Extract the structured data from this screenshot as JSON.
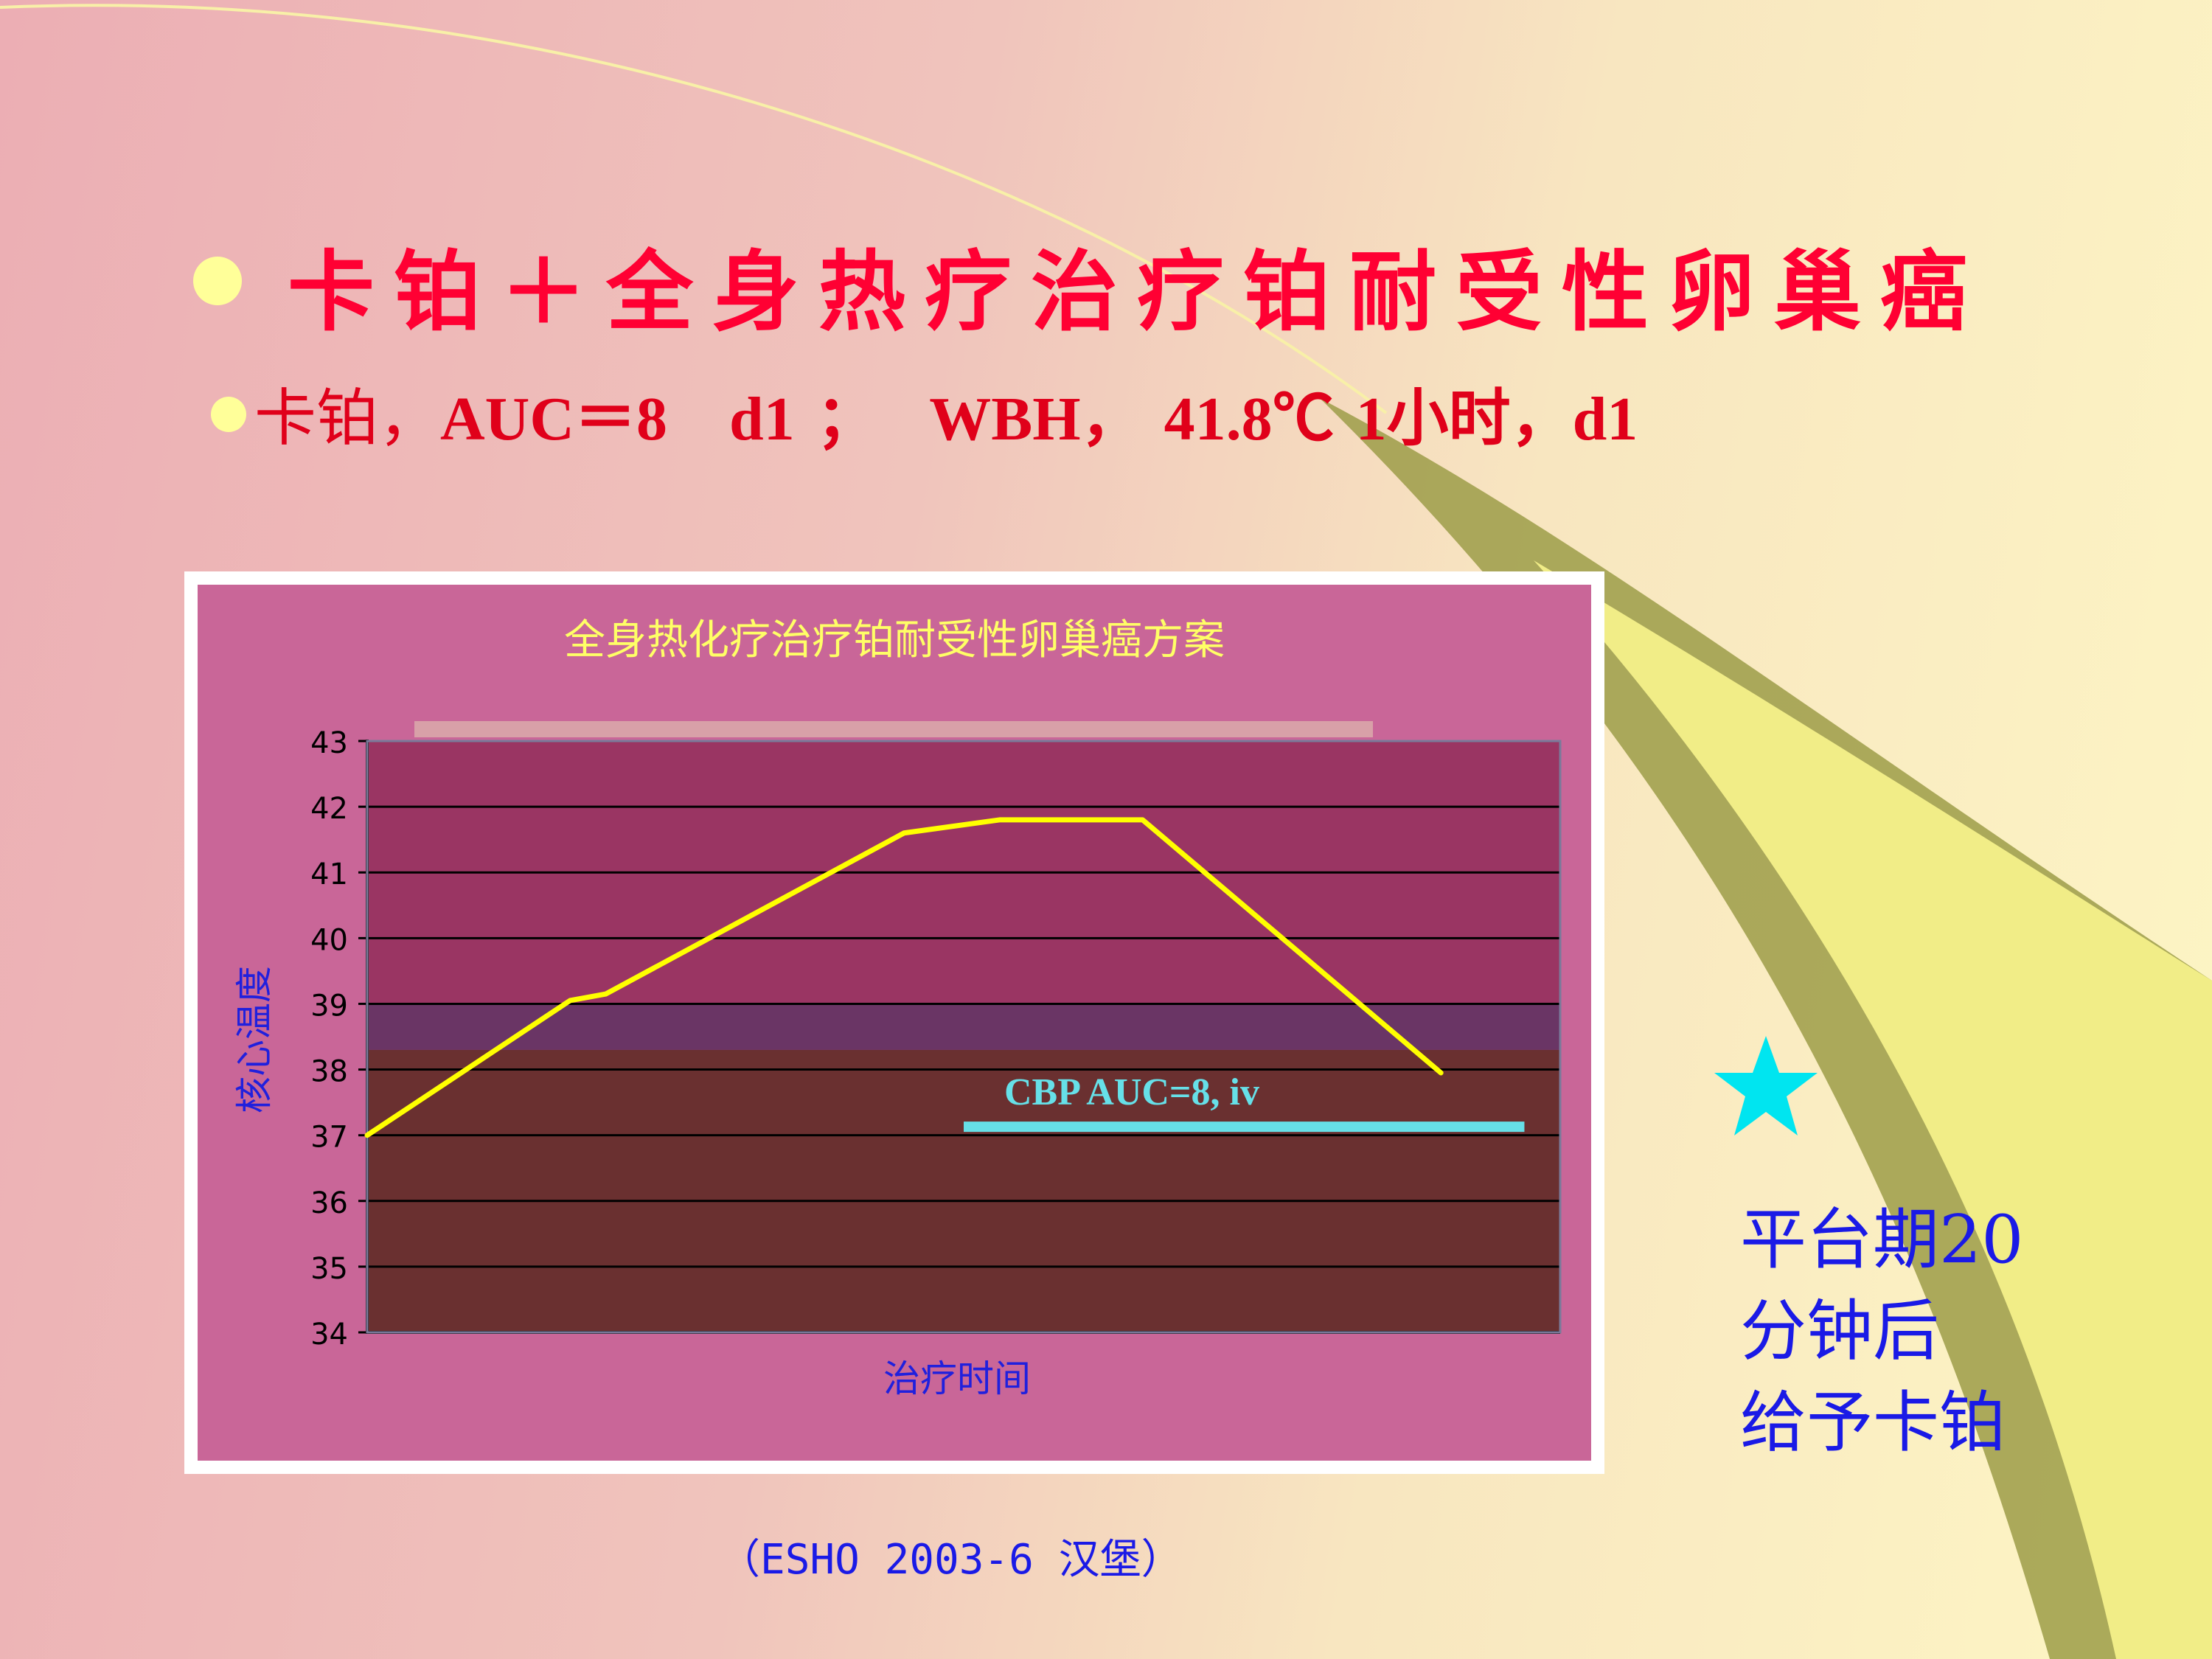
{
  "slide": {
    "title": "卡铂＋全身热疗治疗铂耐受性卵巢癌",
    "subtitle_cjk": "卡铂，",
    "subtitle_rest": "AUC＝8　d1 ；　 WBH， 41.8℃ 1小时，d1",
    "note_lines": [
      "平台期20",
      "分钟后",
      "给予卡铂"
    ],
    "citation": "（ESHO 2003-6 汉堡）",
    "star_icon": "star-icon",
    "colors": {
      "title": "#ff0033",
      "bullet": "#ffff99",
      "note": "#1a1ae6",
      "star": "#00e5f0"
    }
  },
  "chart_data": {
    "type": "line",
    "title": "全身热化疗治疗铂耐受性卵巢癌方案",
    "xlabel": "治疗时间",
    "ylabel": "核心温度",
    "ylim": [
      34,
      43
    ],
    "yticks": [
      "43",
      "42",
      "41",
      "40",
      "39",
      "38",
      "37",
      "36",
      "35",
      "34"
    ],
    "xlim": [
      0,
      100
    ],
    "x_ticks_shown": false,
    "grid": true,
    "series": [
      {
        "x": [
          0,
          17,
          20,
          45,
          53,
          62,
          65,
          78,
          90
        ],
        "y": [
          37.0,
          39.05,
          39.15,
          41.6,
          41.8,
          41.8,
          41.8,
          39.8,
          37.95
        ],
        "color": "#ffff00"
      }
    ],
    "annotations": [
      {
        "text": "CBP AUC=8, iv",
        "segment_x": [
          50,
          97
        ],
        "segment_y": 37.13,
        "color": "#66e0e8"
      }
    ],
    "bands": [
      {
        "y_from": 38.3,
        "y_to": 39.0,
        "color": "#6a3565"
      }
    ],
    "colors": {
      "panel": "#c96698",
      "plot_upper": "#9a3563",
      "plot_lower": "#6a3030",
      "title": "#ffff66",
      "axis_labels": "#2020dd",
      "top_strip": "#d8a0a8"
    }
  }
}
